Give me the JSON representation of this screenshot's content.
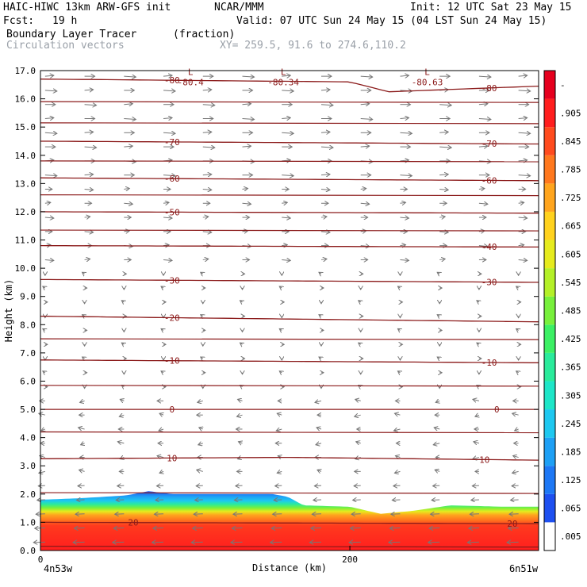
{
  "header": {
    "title_left": "HAIC-HIWC 13km ARW-GFS init",
    "org": "NCAR/MMM",
    "init": "Init: 12 UTC Sat 23 May 15",
    "fcst_label": "Fcst:",
    "fcst_value": "19 h",
    "valid": "Valid: 07 UTC Sun 24 May 15 (04 LST Sun 24 May 15)",
    "field_name": "Boundary Layer Tracer",
    "field_units": "(fraction)",
    "overlay_name": "Circulation vectors",
    "xy_info": "XY= 259.5, 91.6 to 274.6,110.2"
  },
  "chart_data": {
    "type": "heatmap",
    "xlabel": "Distance (km)",
    "ylabel": "Height (km)",
    "xlim": [
      0,
      322
    ],
    "ylim": [
      0,
      17
    ],
    "x_ticks": [
      0,
      200
    ],
    "y_ticks": [
      "0.0",
      "1.0",
      "2.0",
      "3.0",
      "4.0",
      "5.0",
      "6.0",
      "7.0",
      "8.0",
      "9.0",
      "10.0",
      "11.0",
      "12.0",
      "13.0",
      "14.0",
      "15.0",
      "16.0",
      "17.0"
    ],
    "start_label": "4n53w",
    "end_label": "6n51w",
    "colorbar": {
      "labels": [
        ".005",
        ".065",
        ".125",
        ".185",
        ".245",
        ".305",
        ".365",
        ".425",
        ".485",
        ".545",
        ".605",
        ".665",
        ".725",
        ".785",
        ".845",
        ".905",
        "-"
      ],
      "colors": [
        "#ffffff",
        "#1e50f0",
        "#1e78f5",
        "#1ea0f5",
        "#1ec8f0",
        "#1ee6c8",
        "#2aeb9b",
        "#3cf064",
        "#78f03c",
        "#b4f028",
        "#e6eb1e",
        "#ffd21e",
        "#ffa51e",
        "#ff781e",
        "#ff4b1e",
        "#ff1e1e",
        "#e6001e"
      ]
    },
    "bl_top_km": [
      [
        0,
        1.8
      ],
      [
        25,
        1.85
      ],
      [
        55,
        1.95
      ],
      [
        70,
        2.1
      ],
      [
        85,
        2.0
      ],
      [
        150,
        2.0
      ],
      [
        160,
        1.9
      ],
      [
        170,
        1.6
      ],
      [
        200,
        1.55
      ],
      [
        220,
        1.3
      ],
      [
        240,
        1.4
      ],
      [
        265,
        1.6
      ],
      [
        300,
        1.55
      ],
      [
        322,
        1.55
      ]
    ],
    "isotherms": [
      {
        "label": "20",
        "pts": [
          [
            0,
            1.0
          ],
          [
            322,
            0.95
          ]
        ],
        "label_x": [
          60,
          305
        ]
      },
      {
        "label": "10",
        "pts": [
          [
            0,
            3.25
          ],
          [
            160,
            3.3
          ],
          [
            322,
            3.2
          ]
        ],
        "label_x": [
          85,
          287
        ]
      },
      {
        "label": "0",
        "pts": [
          [
            0,
            5.0
          ],
          [
            322,
            5.0
          ]
        ],
        "label_x": [
          85,
          295
        ]
      },
      {
        "label": "-10",
        "pts": [
          [
            0,
            6.75
          ],
          [
            322,
            6.65
          ]
        ],
        "label_x": [
          85,
          290
        ]
      },
      {
        "label": "-20",
        "pts": [
          [
            0,
            8.3
          ],
          [
            322,
            8.1
          ]
        ],
        "label_x": [
          85,
          0
        ]
      },
      {
        "label": "-30",
        "pts": [
          [
            0,
            9.6
          ],
          [
            322,
            9.5
          ]
        ],
        "label_x": [
          85,
          290
        ]
      },
      {
        "label": "-40",
        "pts": [
          [
            0,
            10.8
          ],
          [
            322,
            10.75
          ]
        ],
        "label_x": [
          0,
          290
        ]
      },
      {
        "label": "-50",
        "pts": [
          [
            0,
            12.0
          ],
          [
            322,
            11.95
          ]
        ],
        "label_x": [
          85,
          0
        ]
      },
      {
        "label": "-60",
        "pts": [
          [
            0,
            13.2
          ],
          [
            322,
            13.1
          ]
        ],
        "label_x": [
          85,
          290
        ]
      },
      {
        "label": "-70",
        "pts": [
          [
            0,
            14.5
          ],
          [
            322,
            14.4
          ]
        ],
        "label_x": [
          85,
          290
        ]
      },
      {
        "label": "-80",
        "pts": [
          [
            0,
            16.7
          ],
          [
            200,
            16.6
          ],
          [
            225,
            16.25
          ],
          [
            322,
            16.45
          ]
        ],
        "label_x": [
          85,
          290
        ]
      }
    ],
    "extra_isotherms_km": [
      0.15,
      2.05,
      4.2,
      5.85,
      7.5,
      11.35,
      12.6,
      13.8,
      15.15,
      15.9
    ],
    "minima": [
      {
        "label": "L",
        "x": 97,
        "y": 16.85
      },
      {
        "label": "-80.4",
        "x": 97,
        "y": 16.48
      },
      {
        "label": "L",
        "x": 157,
        "y": 16.85
      },
      {
        "label": "-80.34",
        "x": 157,
        "y": 16.48
      },
      {
        "label": "L",
        "x": 250,
        "y": 16.85
      },
      {
        "label": "-80.63",
        "x": 250,
        "y": 16.48
      }
    ]
  }
}
